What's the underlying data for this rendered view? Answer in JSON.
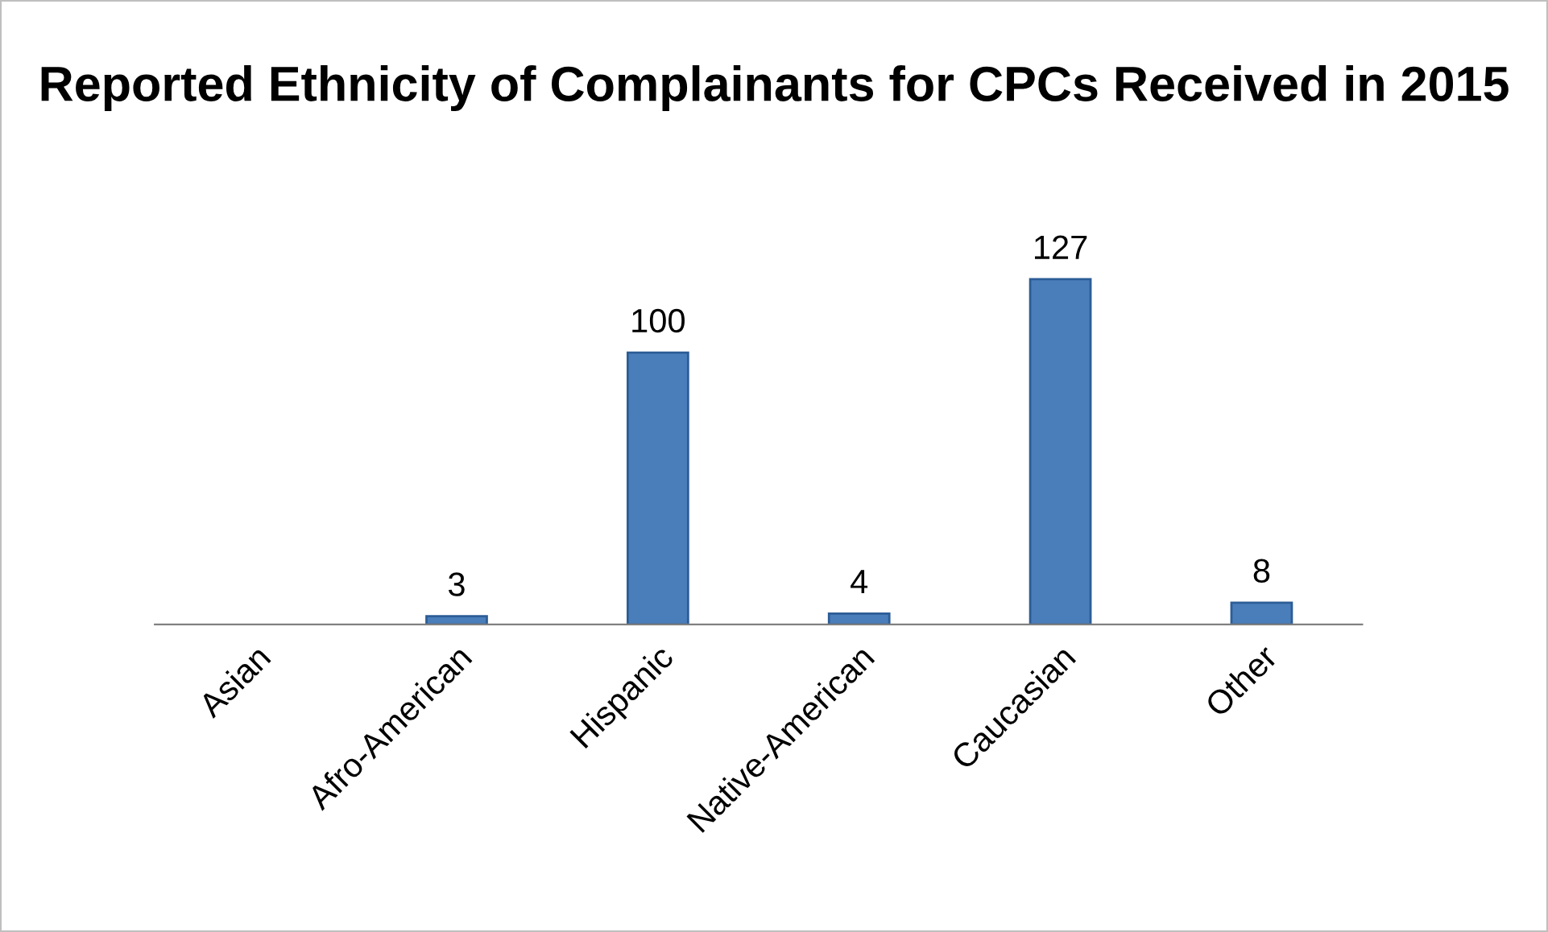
{
  "chart_data": {
    "type": "bar",
    "title": "Reported Ethnicity of Complainants for CPCs Received in 2015",
    "categories": [
      "Asian",
      "Afro-American",
      "Hispanic",
      "Native-American",
      "Caucasian",
      "Other"
    ],
    "values": [
      null,
      3,
      100,
      4,
      127,
      8
    ],
    "color": "#4a7ebb",
    "data_labels": true,
    "grid": false,
    "legend": false
  }
}
